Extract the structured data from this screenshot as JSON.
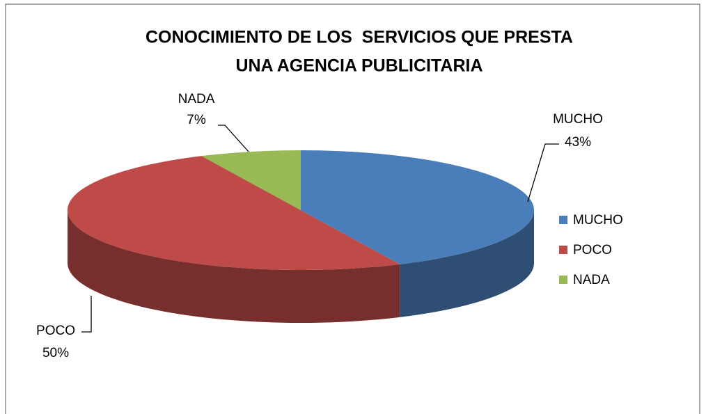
{
  "chart_data": {
    "type": "pie",
    "title": [
      "CONOCIMIENTO DE LOS  SERVICIOS QUE PRESTA",
      "UNA AGENCIA PUBLICITARIA"
    ],
    "categories": [
      "MUCHO",
      "POCO",
      "NADA"
    ],
    "values": [
      43,
      50,
      7
    ],
    "value_labels": [
      "43%",
      "50%",
      "7%"
    ],
    "colors": [
      "#4a7ebb",
      "#be4b48",
      "#98b954"
    ],
    "legend": "right"
  }
}
